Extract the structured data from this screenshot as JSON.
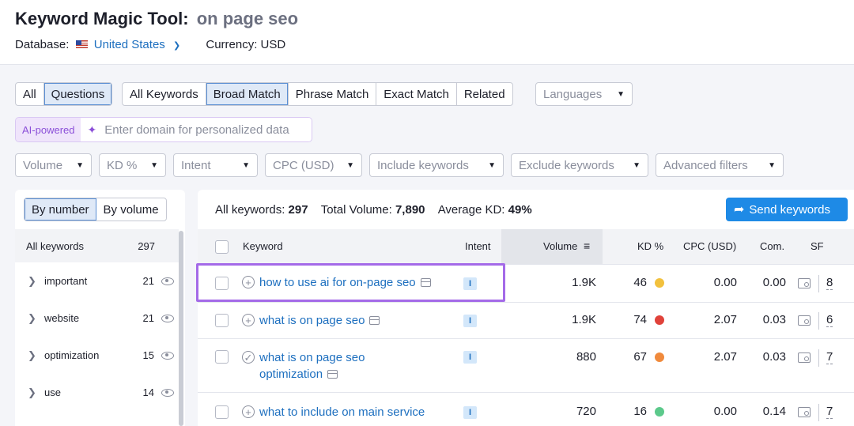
{
  "header": {
    "title": "Keyword Magic Tool:",
    "query": "on page seo",
    "database_label": "Database:",
    "database_value": "United States",
    "currency": "Currency: USD"
  },
  "filters": {
    "type_tabs": [
      "All",
      "Questions"
    ],
    "match_tabs": [
      "All Keywords",
      "Broad Match",
      "Phrase Match",
      "Exact Match",
      "Related"
    ],
    "languages": "Languages",
    "ai_badge": "AI-powered",
    "ai_placeholder": "Enter domain for personalized data",
    "dropdowns": [
      "Volume",
      "KD %",
      "Intent",
      "CPC (USD)",
      "Include keywords",
      "Exclude keywords",
      "Advanced filters"
    ]
  },
  "sidebar": {
    "toggle": [
      "By number",
      "By volume"
    ],
    "all_label": "All keywords",
    "all_count": "297",
    "groups": [
      {
        "label": "important",
        "count": "21"
      },
      {
        "label": "website",
        "count": "21"
      },
      {
        "label": "optimization",
        "count": "15"
      },
      {
        "label": "use",
        "count": "14"
      }
    ]
  },
  "summary": {
    "all_label": "All keywords:",
    "all_value": "297",
    "vol_label": "Total Volume:",
    "vol_value": "7,890",
    "kd_label": "Average KD:",
    "kd_value": "49%",
    "send_label": "Send keywords"
  },
  "table": {
    "headers": [
      "Keyword",
      "Intent",
      "Volume",
      "KD %",
      "CPC (USD)",
      "Com.",
      "SF"
    ],
    "rows": [
      {
        "keyword": "how to use ai for on-page seo",
        "intent": "I",
        "volume": "1.9K",
        "kd": "46",
        "kd_color": "#f2c13d",
        "cpc": "0.00",
        "com": "0.00",
        "sf": "8"
      },
      {
        "keyword": "what is on page seo",
        "intent": "I",
        "volume": "1.9K",
        "kd": "74",
        "kd_color": "#e0423a",
        "cpc": "2.07",
        "com": "0.03",
        "sf": "6"
      },
      {
        "keyword": "what is on page seo optimization",
        "keyword_line1": "what is on page seo",
        "keyword_line2": "optimization",
        "intent": "I",
        "volume": "880",
        "kd": "67",
        "kd_color": "#f08a3c",
        "cpc": "2.07",
        "com": "0.03",
        "sf": "7"
      },
      {
        "keyword": "what to include on main service",
        "intent": "I",
        "volume": "720",
        "kd": "16",
        "kd_color": "#5cc98b",
        "cpc": "0.00",
        "com": "0.14",
        "sf": "7"
      }
    ]
  }
}
